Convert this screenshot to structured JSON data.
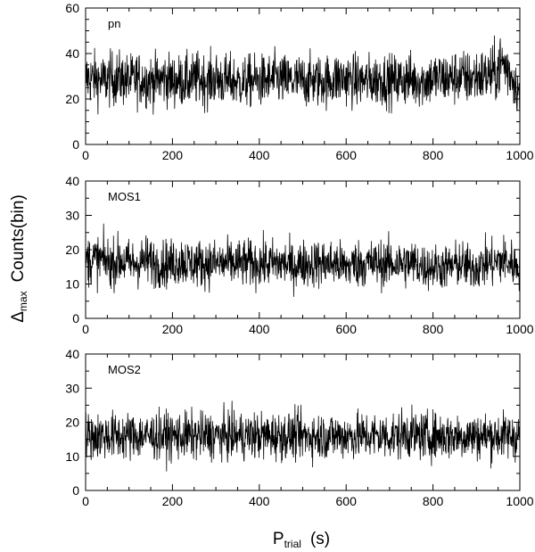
{
  "chart_data": {
    "type": "line",
    "xlabel_main": "P",
    "xlabel_sub": "trial",
    "xlabel_unit": "(s)",
    "ylabel_main": "Δ",
    "ylabel_sub": "max",
    "ylabel_unit": "Counts(bin)",
    "xlim": [
      0,
      1000
    ],
    "xticks": [
      0,
      200,
      400,
      600,
      800,
      1000
    ],
    "panels": [
      {
        "name": "pn",
        "ylim": [
          0,
          60
        ],
        "yticks": [
          0,
          20,
          40,
          60
        ],
        "spread": 6,
        "x_step": 20,
        "local_mean": [
          29,
          29,
          28,
          29,
          29,
          28,
          29,
          28,
          28,
          29,
          28,
          28,
          28,
          29,
          28,
          29,
          28,
          28,
          27,
          28,
          28,
          28,
          29,
          28,
          28,
          28,
          28,
          28,
          28,
          29,
          29,
          28,
          28,
          28,
          29,
          28,
          28,
          29,
          28,
          28,
          29,
          29,
          29,
          30,
          29,
          30,
          30,
          31,
          36,
          31,
          22
        ]
      },
      {
        "name": "MOS1",
        "ylim": [
          0,
          40
        ],
        "yticks": [
          0,
          10,
          20,
          30,
          40
        ],
        "spread": 3.5,
        "x_step": 20,
        "local_mean": [
          17,
          17,
          17,
          16,
          17,
          16,
          16,
          17,
          16,
          16,
          16,
          17,
          16,
          16,
          16,
          16,
          16,
          16,
          16,
          16,
          16,
          16,
          16,
          16,
          15,
          16,
          16,
          16,
          16,
          16,
          15,
          16,
          16,
          16,
          16,
          16,
          16,
          16,
          16,
          15,
          15,
          15,
          15,
          16,
          15,
          15,
          16,
          16,
          17,
          16,
          15
        ]
      },
      {
        "name": "MOS2",
        "ylim": [
          0,
          40
        ],
        "yticks": [
          0,
          10,
          20,
          30,
          40
        ],
        "spread": 3.5,
        "x_step": 20,
        "local_mean": [
          16,
          16,
          16,
          16,
          16,
          16,
          16,
          16,
          16,
          16,
          16,
          16,
          16,
          16,
          16,
          16,
          16,
          16,
          16,
          16,
          16,
          16,
          16,
          16,
          16,
          16,
          16,
          16,
          16,
          16,
          16,
          16,
          16,
          16,
          16,
          16,
          16,
          17,
          16,
          16,
          16,
          16,
          16,
          16,
          16,
          16,
          16,
          16,
          16,
          16,
          16
        ]
      }
    ]
  }
}
